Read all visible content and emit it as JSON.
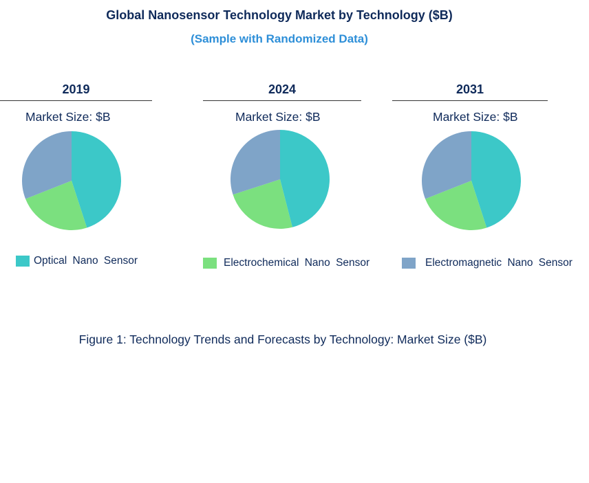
{
  "title": "Global Nanosensor Technology Market by Technology ($B)",
  "subtitle": "(Sample with Randomized Data)",
  "caption": "Figure 1: Technology Trends and Forecasts by Technology: Market Size ($B)",
  "market_size_label": "Market Size: $B",
  "colors": {
    "Optical Nano Sensor": "#3cc8c8",
    "Electrochemical Nano Sensor": "#7be07f",
    "Electromagnetic Nano Sensor": "#7fa4c8"
  },
  "legend": [
    "Optical Nano Sensor",
    "Electrochemical Nano Sensor",
    "Electromagnetic Nano Sensor"
  ],
  "chart_data": [
    {
      "type": "pie",
      "title": "2019",
      "categories": [
        "Optical Nano Sensor",
        "Electrochemical Nano Sensor",
        "Electromagnetic Nano Sensor"
      ],
      "values": [
        45,
        24,
        31
      ]
    },
    {
      "type": "pie",
      "title": "2024",
      "categories": [
        "Optical Nano Sensor",
        "Electrochemical Nano Sensor",
        "Electromagnetic Nano Sensor"
      ],
      "values": [
        46,
        24,
        30
      ]
    },
    {
      "type": "pie",
      "title": "2031",
      "categories": [
        "Optical Nano Sensor",
        "Electrochemical Nano Sensor",
        "Electromagnetic Nano Sensor"
      ],
      "values": [
        45,
        24,
        31
      ]
    }
  ]
}
